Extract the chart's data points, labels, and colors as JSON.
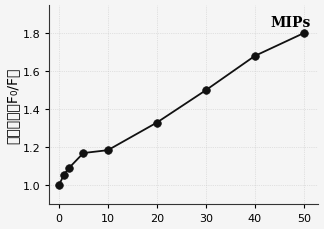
{
  "x": [
    0,
    1,
    2,
    5,
    10,
    20,
    30,
    40,
    50
  ],
  "y": [
    1.0,
    1.055,
    1.09,
    1.17,
    1.185,
    1.33,
    1.5,
    1.68,
    1.8
  ],
  "line_color": "#111111",
  "marker_color": "#111111",
  "marker_size": 5.5,
  "line_width": 1.3,
  "ylabel_chinese": "相对强度（F₀/F）",
  "legend_label": "MIPs",
  "xlim": [
    -2,
    53
  ],
  "ylim": [
    0.9,
    1.95
  ],
  "xticks": [
    0,
    10,
    20,
    30,
    40,
    50
  ],
  "yticks": [
    1.0,
    1.2,
    1.4,
    1.6,
    1.8
  ],
  "grid_color": "#cccccc",
  "background_color": "#f5f5f5",
  "tick_fontsize": 8,
  "ylabel_fontsize": 10,
  "legend_fontsize": 10,
  "grid_linewidth": 0.5
}
